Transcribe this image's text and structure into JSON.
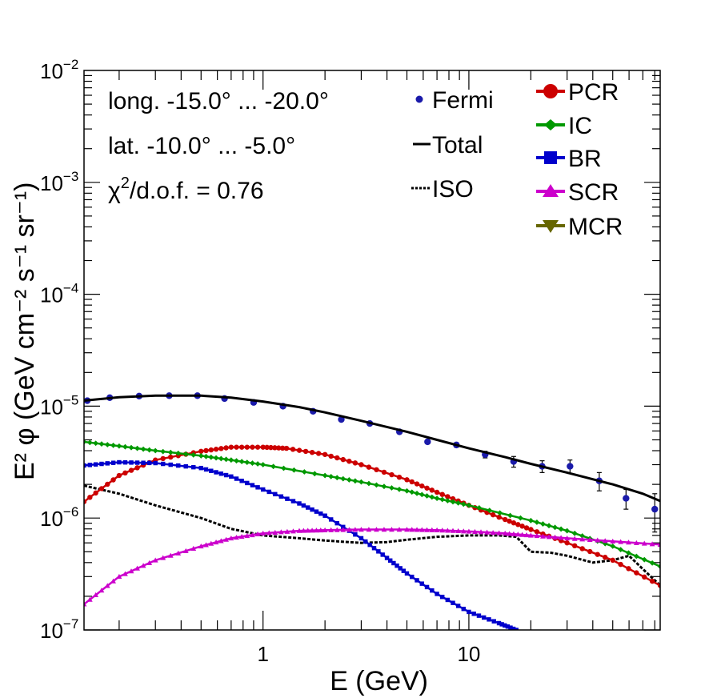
{
  "chart_data": {
    "type": "line",
    "title": "",
    "xlabel": "E (GeV)",
    "ylabel": "E² φ (GeV cm⁻² s⁻¹ sr⁻¹)",
    "xscale": "log",
    "yscale": "log",
    "xlim": [
      0.135,
      85
    ],
    "ylim": [
      1e-07,
      0.01
    ],
    "x_tick_labels": [
      {
        "value": 1,
        "label": "1"
      },
      {
        "value": 10,
        "label": "10"
      }
    ],
    "y_tick_labels": [
      {
        "value": 1e-07,
        "base": "10",
        "exp": "−7"
      },
      {
        "value": 1e-06,
        "base": "10",
        "exp": "−6"
      },
      {
        "value": 1e-05,
        "base": "10",
        "exp": "−5"
      },
      {
        "value": 0.0001,
        "base": "10",
        "exp": "−4"
      },
      {
        "value": 0.001,
        "base": "10",
        "exp": "−3"
      },
      {
        "value": 0.01,
        "base": "10",
        "exp": "−2"
      }
    ],
    "annotations": {
      "longitude": "long. -15.0° ... -20.0°",
      "latitude": "lat. -10.0° ... -5.0°",
      "chi2_symbol": "χ",
      "chi2_sup": "2",
      "chi2_rest": "/d.o.f. = 0.76"
    },
    "legend_left": [
      "Fermi",
      "Total",
      "ISO"
    ],
    "legend_right": [
      "PCR",
      "IC",
      "BR",
      "SCR",
      "MCR"
    ],
    "series": [
      {
        "name": "Fermi",
        "kind": "points",
        "color": "#1a1aaa",
        "x": [
          0.14,
          0.18,
          0.25,
          0.35,
          0.48,
          0.65,
          0.9,
          1.25,
          1.75,
          2.4,
          3.3,
          4.6,
          6.3,
          8.7,
          12.0,
          16.5,
          22.7,
          31.0,
          43.0,
          58.0,
          80.0
        ],
        "y": [
          1.12e-05,
          1.19e-05,
          1.23e-05,
          1.24e-05,
          1.24e-05,
          1.17e-05,
          1.08e-05,
          1e-05,
          9e-06,
          7.6e-06,
          7e-06,
          5.9e-06,
          4.8e-06,
          4.5e-06,
          3.7e-06,
          3.2e-06,
          2.9e-06,
          2.9e-06,
          2.15e-06,
          1.5e-06,
          1.2e-06
        ],
        "err": [
          0,
          0,
          0,
          0,
          0,
          0,
          0,
          0,
          0,
          0,
          0,
          0,
          0,
          2e-07,
          2.5e-07,
          3.5e-07,
          3.5e-07,
          4e-07,
          4e-07,
          3e-07,
          4.5e-07
        ]
      },
      {
        "name": "Total",
        "kind": "line",
        "color": "#000000",
        "x": [
          0.135,
          0.2,
          0.3,
          0.5,
          0.7,
          1.0,
          1.5,
          2.0,
          3.0,
          5.0,
          7.0,
          10.0,
          15.0,
          20.0,
          30.0,
          50.0,
          70.0,
          85.0
        ],
        "y": [
          1.12e-05,
          1.2e-05,
          1.24e-05,
          1.24e-05,
          1.19e-05,
          1.1e-05,
          9.8e-06,
          8.8e-06,
          7.4e-06,
          5.9e-06,
          5e-06,
          4.2e-06,
          3.5e-06,
          3.05e-06,
          2.55e-06,
          2e-06,
          1.65e-06,
          1.42e-06
        ]
      },
      {
        "name": "ISO",
        "kind": "dotted",
        "color": "#000000",
        "x": [
          0.135,
          0.2,
          0.3,
          0.5,
          0.7,
          1.0,
          1.5,
          2.0,
          3.0,
          4.0,
          5.0,
          7.0,
          10.0,
          14.0,
          17.0,
          20.0,
          25.0,
          30.0,
          40.0,
          50.0,
          60.0,
          70.0,
          85.0
        ],
        "y": [
          1.95e-06,
          1.65e-06,
          1.3e-06,
          1e-06,
          8e-07,
          7e-07,
          6.6e-07,
          6.3e-07,
          6e-07,
          6.1e-07,
          6.4e-07,
          6.8e-07,
          7e-07,
          7e-07,
          6.8e-07,
          5e-07,
          4.9e-07,
          4.6e-07,
          4e-07,
          4.2e-07,
          4.6e-07,
          3.5e-07,
          2.5e-07
        ]
      },
      {
        "name": "PCR",
        "kind": "line-markers",
        "marker": "circle",
        "color": "#cc0000",
        "x": [
          0.135,
          0.2,
          0.3,
          0.5,
          0.7,
          1.0,
          1.3,
          2.0,
          3.0,
          5.0,
          7.0,
          10.0,
          15.0,
          20.0,
          30.0,
          50.0,
          85.0
        ],
        "y": [
          1.4e-06,
          2.4e-06,
          3.3e-06,
          3.95e-06,
          4.3e-06,
          4.3e-06,
          4.2e-06,
          3.7e-06,
          3e-06,
          2.2e-06,
          1.7e-06,
          1.3e-06,
          9.7e-07,
          7.9e-07,
          6e-07,
          4.2e-07,
          2.5e-07
        ]
      },
      {
        "name": "IC",
        "kind": "line-markers",
        "marker": "diamond",
        "color": "#009900",
        "x": [
          0.135,
          0.2,
          0.3,
          0.5,
          0.7,
          1.0,
          2.0,
          3.0,
          5.0,
          7.0,
          10.0,
          20.0,
          30.0,
          50.0,
          85.0
        ],
        "y": [
          4.8e-06,
          4.4e-06,
          4e-06,
          3.6e-06,
          3.3e-06,
          3e-06,
          2.4e-06,
          2.1e-06,
          1.75e-06,
          1.5e-06,
          1.3e-06,
          9.5e-07,
          7.7e-07,
          5.6e-07,
          3.7e-07
        ]
      },
      {
        "name": "BR",
        "kind": "line-markers",
        "marker": "square",
        "color": "#0000cc",
        "x": [
          0.135,
          0.2,
          0.3,
          0.5,
          0.7,
          1.0,
          1.5,
          2.0,
          3.0,
          4.0,
          5.0,
          7.0,
          10.0,
          14.0,
          17.0
        ],
        "y": [
          2.95e-06,
          3.15e-06,
          3.1e-06,
          2.8e-06,
          2.35e-06,
          1.8e-06,
          1.35e-06,
          1.05e-06,
          6.6e-07,
          4.4e-07,
          3.2e-07,
          2.1e-07,
          1.45e-07,
          1.15e-07,
          1e-07
        ]
      },
      {
        "name": "SCR",
        "kind": "line-markers",
        "marker": "triangle-up",
        "color": "#cc00cc",
        "x": [
          0.135,
          0.2,
          0.3,
          0.5,
          0.7,
          1.0,
          1.5,
          2.0,
          3.0,
          5.0,
          7.0,
          10.0,
          15.0,
          20.0,
          30.0,
          50.0,
          85.0
        ],
        "y": [
          1.7e-07,
          3e-07,
          4.2e-07,
          5.6e-07,
          6.6e-07,
          7.3e-07,
          7.7e-07,
          7.8e-07,
          7.9e-07,
          7.9e-07,
          7.8e-07,
          7.6e-07,
          7.3e-07,
          7e-07,
          6.6e-07,
          6.2e-07,
          5.8e-07
        ]
      },
      {
        "name": "MCR",
        "kind": "legend-only",
        "marker": "triangle-down",
        "color": "#666600",
        "x": [],
        "y": []
      }
    ]
  }
}
